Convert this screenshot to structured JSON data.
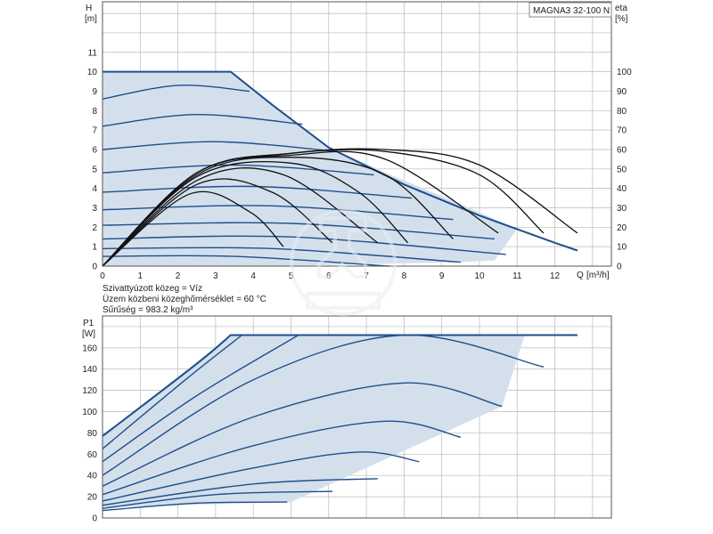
{
  "model_label": "MAGNA3 32-100 N",
  "fluid_info": [
    "Szivattyúzott közeg = Víz",
    "Üzem közbeni közeghőmérséklet = 60 °C",
    "Sűrűség = 983.2 kg/m³"
  ],
  "colors": {
    "curve": "#1f4e8c",
    "fill": "#d3e0ec",
    "grid": "#b9b9b9",
    "eta": "#111111",
    "frame": "#555555"
  },
  "chart_data": [
    {
      "type": "line",
      "title": "",
      "ylabel": "H",
      "yunit": "[m]",
      "y2label": "eta",
      "y2unit": "[%]",
      "xlabel": "Q",
      "xunit": "[m³/h]",
      "xlim": [
        0,
        13.5
      ],
      "ylim": [
        0,
        13.6
      ],
      "y2lim": [
        0,
        100
      ],
      "x_ticks": [
        "0",
        "1",
        "2",
        "3",
        "4",
        "5",
        "6",
        "7",
        "8",
        "9",
        "10",
        "11",
        "12"
      ],
      "y_ticks": [
        "0",
        "1",
        "2",
        "3",
        "4",
        "5",
        "6",
        "7",
        "8",
        "9",
        "10",
        "11"
      ],
      "y2_ticks": [
        "0",
        "10",
        "20",
        "30",
        "40",
        "50",
        "60",
        "70",
        "80",
        "90",
        "100"
      ],
      "grid": true,
      "operating_area": [
        [
          0,
          10
        ],
        [
          3.4,
          10
        ],
        [
          6,
          6.1
        ],
        [
          8,
          4.4
        ],
        [
          9.5,
          3.2
        ],
        [
          11,
          1.9
        ],
        [
          10.4,
          0.3
        ],
        [
          9.5,
          0.2
        ],
        [
          4.5,
          0
        ],
        [
          0,
          0
        ]
      ],
      "max_curve": {
        "x": [
          0,
          3.4,
          4.5,
          6,
          8,
          10,
          12,
          12.6
        ],
        "y": [
          10,
          10,
          8.3,
          6.1,
          4.2,
          2.6,
          1.2,
          0.8
        ]
      },
      "head_curves": [
        {
          "x": [
            0,
            2,
            3.9
          ],
          "y": [
            8.6,
            9.3,
            9.0
          ]
        },
        {
          "x": [
            0,
            2.5,
            5.3
          ],
          "y": [
            7.2,
            7.8,
            7.3
          ]
        },
        {
          "x": [
            0,
            3,
            6.2
          ],
          "y": [
            6.0,
            6.4,
            5.9
          ]
        },
        {
          "x": [
            0,
            3.5,
            7.2
          ],
          "y": [
            4.8,
            5.2,
            4.7
          ]
        },
        {
          "x": [
            0,
            4,
            8.2
          ],
          "y": [
            3.8,
            4.1,
            3.5
          ]
        },
        {
          "x": [
            0,
            4.5,
            9.3
          ],
          "y": [
            2.9,
            3.1,
            2.4
          ]
        },
        {
          "x": [
            0,
            5,
            10.4
          ],
          "y": [
            2.1,
            2.2,
            1.4
          ]
        },
        {
          "x": [
            0,
            5,
            10.7
          ],
          "y": [
            1.4,
            1.5,
            0.6
          ]
        },
        {
          "x": [
            0,
            4.5,
            9.5
          ],
          "y": [
            0.9,
            0.9,
            0.2
          ]
        },
        {
          "x": [
            0,
            3.5,
            7.6
          ],
          "y": [
            0.5,
            0.5,
            0.0
          ]
        }
      ],
      "eta_curves": [
        {
          "x": [
            0,
            2.5,
            5,
            7.5,
            10,
            12.6
          ],
          "y": [
            0,
            48,
            58,
            60,
            52,
            17
          ]
        },
        {
          "x": [
            0,
            2.5,
            5,
            7.5,
            10,
            11.7
          ],
          "y": [
            0,
            48,
            58,
            59,
            47,
            17
          ]
        },
        {
          "x": [
            0,
            2.5,
            5,
            7.5,
            10.5
          ],
          "y": [
            0,
            48,
            57,
            55,
            17
          ]
        },
        {
          "x": [
            0,
            2.5,
            5,
            7.5,
            9.3
          ],
          "y": [
            0,
            47,
            56,
            47,
            14
          ]
        },
        {
          "x": [
            0,
            2.5,
            5,
            6.8,
            8.1
          ],
          "y": [
            0,
            46,
            53,
            38,
            12
          ]
        },
        {
          "x": [
            0,
            2.5,
            4.8,
            7.3
          ],
          "y": [
            0,
            44,
            47,
            12
          ]
        },
        {
          "x": [
            0,
            2.5,
            4.5,
            6.1
          ],
          "y": [
            0,
            42,
            38,
            12
          ]
        },
        {
          "x": [
            0,
            2.3,
            3.9,
            4.8
          ],
          "y": [
            0,
            37,
            28,
            10
          ]
        }
      ]
    },
    {
      "type": "line",
      "title": "",
      "ylabel": "P1",
      "yunit": "[W]",
      "xlim": [
        0,
        13.5
      ],
      "ylim": [
        0,
        190
      ],
      "y_ticks": [
        "0",
        "20",
        "40",
        "60",
        "80",
        "100",
        "120",
        "140",
        "160"
      ],
      "grid": true,
      "operating_area": [
        [
          0,
          77
        ],
        [
          3.4,
          172
        ],
        [
          11.2,
          172
        ],
        [
          10.6,
          105
        ],
        [
          5,
          15
        ],
        [
          0,
          10
        ]
      ],
      "max_curve": {
        "x": [
          0,
          2.5,
          3.4,
          12.6
        ],
        "y": [
          77,
          145,
          172,
          172
        ]
      },
      "power_curves": [
        {
          "x": [
            0,
            2.2,
            3.7
          ],
          "y": [
            65,
            130,
            172
          ]
        },
        {
          "x": [
            0,
            2.5,
            5.2
          ],
          "y": [
            53,
            115,
            172
          ]
        },
        {
          "x": [
            0,
            4,
            8,
            11.7
          ],
          "y": [
            40,
            130,
            172,
            142
          ]
        },
        {
          "x": [
            0,
            4,
            8,
            10.6
          ],
          "y": [
            30,
            95,
            127,
            105
          ]
        },
        {
          "x": [
            0,
            4,
            7.5,
            9.5
          ],
          "y": [
            22,
            68,
            91,
            76
          ]
        },
        {
          "x": [
            0,
            4,
            6.8,
            8.4
          ],
          "y": [
            16,
            47,
            62,
            53
          ]
        },
        {
          "x": [
            0,
            4,
            7.3
          ],
          "y": [
            12,
            32,
            37
          ]
        },
        {
          "x": [
            0,
            3,
            6.1
          ],
          "y": [
            9,
            22,
            25
          ]
        },
        {
          "x": [
            0,
            2.5,
            4.9
          ],
          "y": [
            7,
            14,
            15
          ]
        }
      ]
    }
  ]
}
